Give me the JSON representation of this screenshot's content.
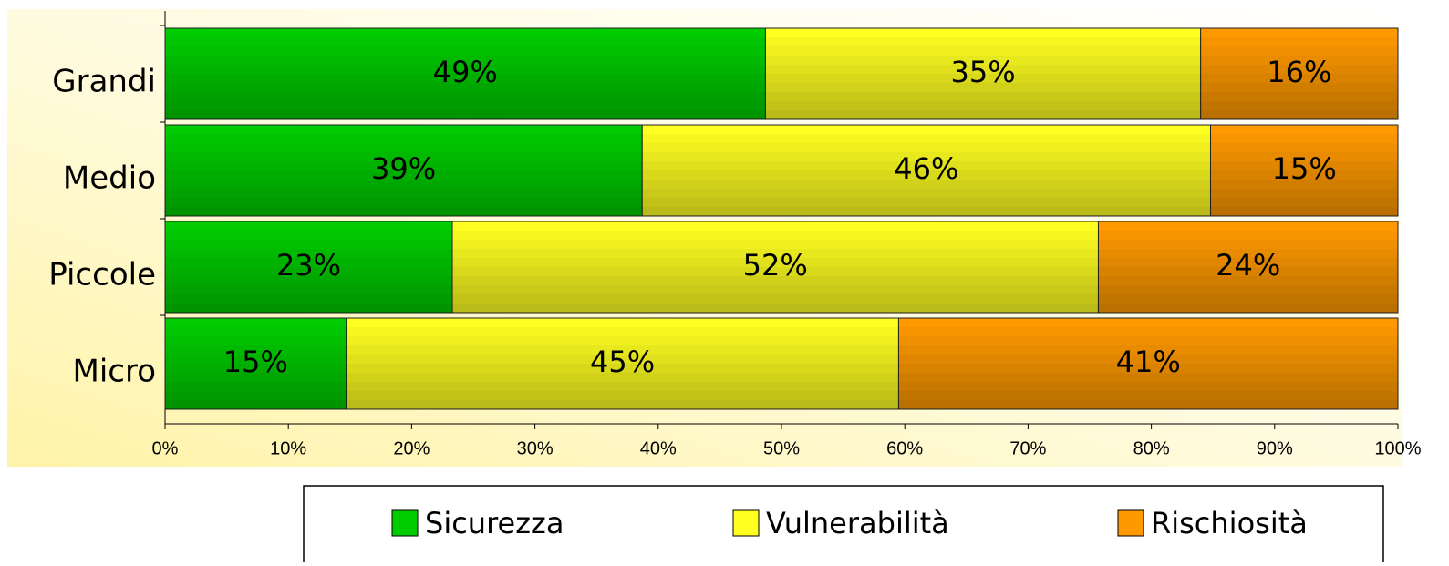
{
  "chart_data": {
    "type": "stacked-bar-horizontal",
    "categories": [
      "Grandi",
      "Medio",
      "Piccole",
      "Micro"
    ],
    "series": [
      {
        "name": "Sicurezza",
        "color": "#00cc00",
        "values": [
          48.7,
          38.7,
          23.3,
          14.7
        ],
        "value_labels": [
          "49%",
          "39%",
          "23%",
          "15%"
        ]
      },
      {
        "name": "Vulnerabilità",
        "color": "#ffff22",
        "values": [
          35.3,
          46.1,
          52.4,
          44.8
        ],
        "value_labels": [
          "35%",
          "46%",
          "52%",
          "45%"
        ]
      },
      {
        "name": "Rischiosità",
        "color": "#ff9900",
        "values": [
          16.0,
          15.2,
          24.3,
          40.5
        ],
        "value_labels": [
          "16%",
          "15%",
          "24%",
          "41%"
        ]
      }
    ],
    "xlim": [
      0,
      100
    ],
    "xticks": [
      {
        "value": 0,
        "label": "0%"
      },
      {
        "value": 10,
        "label": "10%"
      },
      {
        "value": 20,
        "label": "20%"
      },
      {
        "value": 30,
        "label": "30%"
      },
      {
        "value": 40,
        "label": "40%"
      },
      {
        "value": 50,
        "label": "50%"
      },
      {
        "value": 60,
        "label": "60%"
      },
      {
        "value": 70,
        "label": "70%"
      },
      {
        "value": 80,
        "label": "80%"
      },
      {
        "value": 90,
        "label": "90%"
      },
      {
        "value": 100,
        "label": "100%"
      }
    ],
    "legend": "bottom"
  }
}
